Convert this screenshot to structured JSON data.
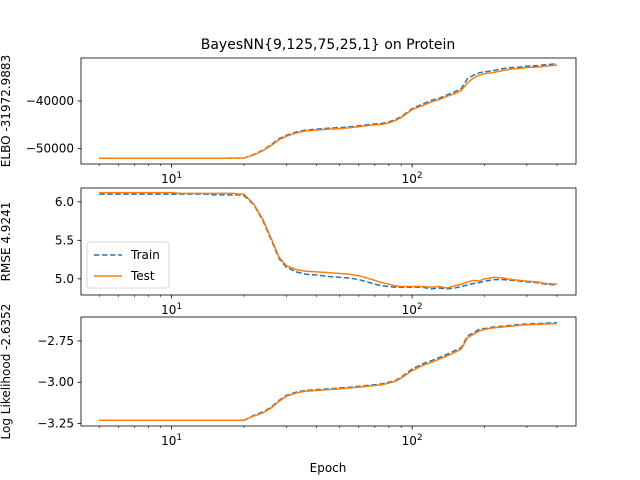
{
  "chart_data": {
    "type": "line",
    "title": "BayesNN{9,125,75,25,1} on Protein",
    "xlabel": "Epoch",
    "xscale": "log",
    "xlim": [
      4.2,
      480
    ],
    "x_ticks": [
      {
        "value": 10,
        "base": "10",
        "exp": "1"
      },
      {
        "value": 100,
        "base": "10",
        "exp": "2"
      }
    ],
    "x": [
      5,
      6,
      7,
      8,
      9,
      10,
      11,
      12,
      13,
      14,
      15,
      16,
      17,
      18,
      19,
      20,
      22,
      24,
      26,
      28,
      30,
      33,
      36,
      40,
      45,
      50,
      55,
      60,
      65,
      70,
      75,
      80,
      85,
      90,
      100,
      110,
      120,
      130,
      140,
      150,
      160,
      170,
      180,
      190,
      200,
      220,
      240,
      260,
      280,
      300,
      330,
      360,
      400
    ],
    "legend": {
      "position": "center-left",
      "entries": [
        "Train",
        "Test"
      ]
    },
    "colors": {
      "train": "#1f77b4",
      "test": "#ff7f0e"
    },
    "panels": [
      {
        "ylabel": "ELBO -31972.9883",
        "ylim": [
          -53200,
          -31000
        ],
        "y_ticks": [
          -50000,
          -40000
        ],
        "y_tick_labels": [
          "−50000",
          "−40000"
        ],
        "series": [
          {
            "name": "Train",
            "style": "dashed",
            "values": [
              -52000,
              -52000,
              -52000,
              -52000,
              -52000,
              -52000,
              -52000,
              -52000,
              -52000,
              -52000,
              -52000,
              -51990,
              -51980,
              -51980,
              -51970,
              -51950,
              -51200,
              -50300,
              -49100,
              -47900,
              -47200,
              -46500,
              -46100,
              -45900,
              -45700,
              -45600,
              -45400,
              -45200,
              -45000,
              -44800,
              -44700,
              -44400,
              -43900,
              -43300,
              -41600,
              -40700,
              -39900,
              -39400,
              -38700,
              -38100,
              -37400,
              -35300,
              -34600,
              -34100,
              -33900,
              -33600,
              -33200,
              -33000,
              -32900,
              -32700,
              -32600,
              -32400,
              -32200
            ]
          },
          {
            "name": "Test",
            "style": "solid",
            "values": [
              -52000,
              -52000,
              -52000,
              -52000,
              -52000,
              -52000,
              -52000,
              -52000,
              -52000,
              -52000,
              -52000,
              -51990,
              -51980,
              -51980,
              -51970,
              -51950,
              -51300,
              -50400,
              -49300,
              -48100,
              -47400,
              -46700,
              -46300,
              -46100,
              -45900,
              -45800,
              -45600,
              -45400,
              -45200,
              -45000,
              -44900,
              -44600,
              -44100,
              -43500,
              -41800,
              -41000,
              -40200,
              -39700,
              -39000,
              -38500,
              -37800,
              -36200,
              -35200,
              -34600,
              -34300,
              -34000,
              -33600,
              -33300,
              -33200,
              -33000,
              -32900,
              -32700,
              -32500
            ]
          }
        ]
      },
      {
        "ylabel": "RMSE 4.9241",
        "ylim": [
          4.79,
          6.18
        ],
        "y_ticks": [
          5.0,
          5.5,
          6.0
        ],
        "y_tick_labels": [
          "5.0",
          "5.5",
          "6.0"
        ],
        "series": [
          {
            "name": "Train",
            "style": "dashed",
            "values": [
              6.1,
              6.1,
              6.1,
              6.1,
              6.1,
              6.1,
              6.1,
              6.1,
              6.1,
              6.1,
              6.09,
              6.09,
              6.09,
              6.09,
              6.09,
              6.08,
              5.96,
              5.75,
              5.5,
              5.26,
              5.15,
              5.09,
              5.06,
              5.05,
              5.03,
              5.02,
              5.01,
              4.99,
              4.96,
              4.93,
              4.91,
              4.9,
              4.89,
              4.89,
              4.89,
              4.89,
              4.87,
              4.88,
              4.87,
              4.88,
              4.9,
              4.92,
              4.94,
              4.95,
              4.97,
              4.99,
              4.99,
              4.98,
              4.97,
              4.96,
              4.95,
              4.93,
              4.92
            ]
          },
          {
            "name": "Test",
            "style": "solid",
            "values": [
              6.12,
              6.12,
              6.12,
              6.12,
              6.12,
              6.12,
              6.11,
              6.11,
              6.11,
              6.11,
              6.11,
              6.11,
              6.11,
              6.11,
              6.1,
              6.1,
              5.97,
              5.77,
              5.52,
              5.28,
              5.17,
              5.12,
              5.1,
              5.09,
              5.08,
              5.07,
              5.06,
              5.04,
              5.01,
              4.98,
              4.95,
              4.93,
              4.91,
              4.9,
              4.9,
              4.9,
              4.89,
              4.9,
              4.88,
              4.91,
              4.93,
              4.96,
              4.98,
              4.97,
              5.0,
              5.02,
              5.01,
              4.99,
              4.98,
              4.97,
              4.96,
              4.94,
              4.93
            ]
          }
        ]
      },
      {
        "ylabel": "Log Likelihood -2.6352",
        "ylim": [
          -3.265,
          -2.605
        ],
        "y_ticks": [
          -3.25,
          -3.0,
          -2.75
        ],
        "y_tick_labels": [
          "−3.25",
          "−3.00",
          "−2.75"
        ],
        "series": [
          {
            "name": "Train",
            "style": "dashed",
            "values": [
              -3.23,
              -3.23,
              -3.23,
              -3.23,
              -3.23,
              -3.23,
              -3.23,
              -3.23,
              -3.23,
              -3.23,
              -3.23,
              -3.23,
              -3.23,
              -3.23,
              -3.23,
              -3.23,
              -3.2,
              -3.18,
              -3.15,
              -3.11,
              -3.08,
              -3.06,
              -3.05,
              -3.045,
              -3.04,
              -3.035,
              -3.03,
              -3.025,
              -3.02,
              -3.015,
              -3.01,
              -3.0,
              -2.99,
              -2.97,
              -2.92,
              -2.89,
              -2.87,
              -2.85,
              -2.83,
              -2.81,
              -2.79,
              -2.72,
              -2.7,
              -2.68,
              -2.675,
              -2.665,
              -2.66,
              -2.655,
              -2.65,
              -2.647,
              -2.645,
              -2.642,
              -2.64
            ]
          },
          {
            "name": "Test",
            "style": "solid",
            "values": [
              -3.23,
              -3.23,
              -3.23,
              -3.23,
              -3.23,
              -3.23,
              -3.23,
              -3.23,
              -3.23,
              -3.23,
              -3.23,
              -3.23,
              -3.23,
              -3.23,
              -3.23,
              -3.23,
              -3.205,
              -3.185,
              -3.155,
              -3.115,
              -3.085,
              -3.065,
              -3.055,
              -3.05,
              -3.045,
              -3.04,
              -3.035,
              -3.03,
              -3.025,
              -3.02,
              -3.015,
              -3.005,
              -2.995,
              -2.975,
              -2.93,
              -2.9,
              -2.88,
              -2.86,
              -2.84,
              -2.82,
              -2.8,
              -2.73,
              -2.71,
              -2.69,
              -2.68,
              -2.67,
              -2.665,
              -2.66,
              -2.655,
              -2.652,
              -2.65,
              -2.647,
              -2.645
            ]
          }
        ]
      }
    ]
  }
}
